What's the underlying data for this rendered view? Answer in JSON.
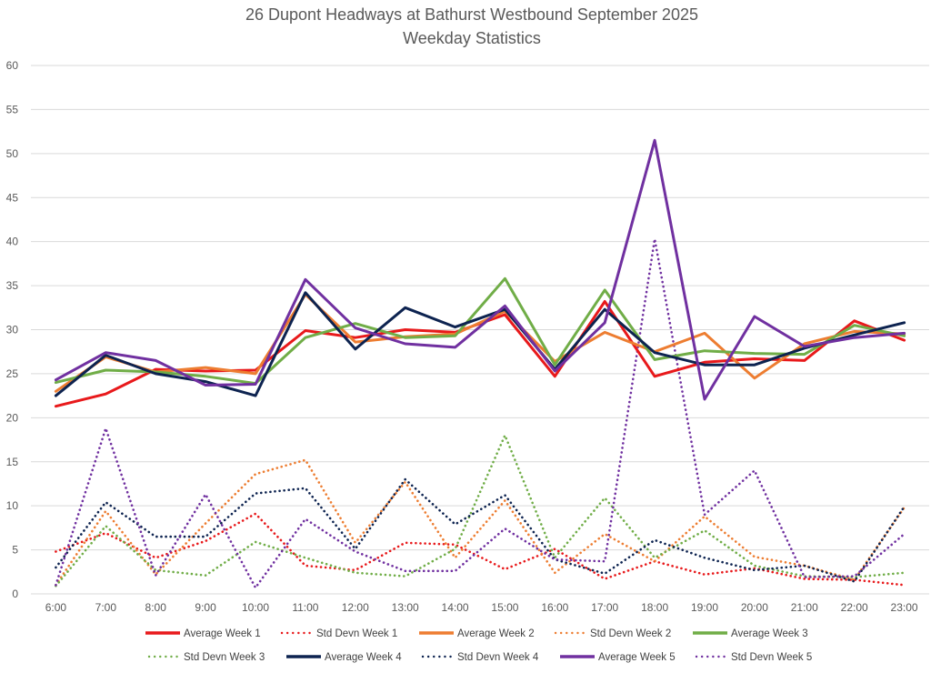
{
  "chart_data": {
    "type": "line",
    "title": "26 Dupont Headways at Bathurst Westbound September 2025",
    "subtitle": "Weekday Statistics",
    "xlabel": "",
    "ylabel": "",
    "ylim": [
      0,
      60
    ],
    "yticks": [
      0,
      5,
      10,
      15,
      20,
      25,
      30,
      35,
      40,
      45,
      50,
      55,
      60
    ],
    "grid": true,
    "legend_position": "bottom",
    "categories": [
      "6:00",
      "7:00",
      "8:00",
      "9:00",
      "10:00",
      "11:00",
      "12:00",
      "13:00",
      "14:00",
      "15:00",
      "16:00",
      "17:00",
      "18:00",
      "19:00",
      "20:00",
      "21:00",
      "22:00",
      "23:00"
    ],
    "series": [
      {
        "name": "Average Week 1",
        "style": "solid",
        "color": "#e8191b",
        "values": [
          21.3,
          22.7,
          25.5,
          25.3,
          25.4,
          29.9,
          29.1,
          30.0,
          29.7,
          31.7,
          24.7,
          33.2,
          24.7,
          26.3,
          26.7,
          26.5,
          31.0,
          28.8
        ]
      },
      {
        "name": "Std Devn Week 1",
        "style": "dotted",
        "color": "#e8191b",
        "values": [
          4.8,
          6.9,
          4.1,
          6.0,
          9.1,
          3.2,
          2.7,
          5.8,
          5.6,
          2.8,
          5.1,
          1.7,
          3.7,
          2.2,
          2.9,
          1.7,
          1.6,
          1.0
        ]
      },
      {
        "name": "Average Week 2",
        "style": "solid",
        "color": "#ed7d31",
        "values": [
          23.0,
          26.9,
          25.2,
          25.7,
          25.0,
          34.0,
          28.6,
          29.2,
          29.5,
          32.1,
          26.4,
          29.7,
          27.5,
          29.6,
          24.5,
          28.4,
          29.8,
          29.5
        ]
      },
      {
        "name": "Std Devn Week 2",
        "style": "dotted",
        "color": "#ed7d31",
        "values": [
          1.0,
          9.4,
          2.2,
          8.0,
          13.6,
          15.2,
          5.8,
          12.7,
          4.1,
          10.6,
          2.4,
          6.8,
          3.7,
          8.8,
          4.2,
          3.2,
          1.6,
          9.8
        ]
      },
      {
        "name": "Average Week 3",
        "style": "solid",
        "color": "#70ad47",
        "values": [
          24.0,
          25.4,
          25.2,
          24.7,
          23.9,
          29.1,
          30.7,
          29.1,
          29.3,
          35.8,
          26.0,
          34.5,
          26.6,
          27.6,
          27.3,
          27.2,
          30.5,
          29.3
        ]
      },
      {
        "name": "Std Devn Week 3",
        "style": "dotted",
        "color": "#70ad47",
        "values": [
          0.9,
          7.7,
          2.7,
          2.1,
          5.9,
          4.1,
          2.4,
          2.0,
          5.1,
          18.0,
          4.1,
          10.9,
          4.1,
          7.2,
          3.2,
          2.0,
          1.9,
          2.4
        ]
      },
      {
        "name": "Average Week 4",
        "style": "solid",
        "color": "#0d2350",
        "values": [
          22.5,
          27.1,
          25.0,
          24.1,
          22.5,
          34.2,
          27.8,
          32.5,
          30.3,
          32.3,
          25.5,
          32.3,
          27.4,
          26.0,
          26.0,
          27.9,
          29.4,
          30.8
        ]
      },
      {
        "name": "Std Devn Week 4",
        "style": "dotted",
        "color": "#0d2350",
        "values": [
          3.0,
          10.4,
          6.5,
          6.5,
          11.4,
          12.0,
          5.1,
          13.0,
          7.9,
          11.2,
          3.9,
          2.3,
          6.1,
          4.1,
          2.7,
          3.2,
          1.4,
          9.9
        ]
      },
      {
        "name": "Average Week 5",
        "style": "solid",
        "color": "#7030a0",
        "values": [
          24.3,
          27.4,
          26.5,
          23.7,
          23.8,
          35.7,
          30.2,
          28.4,
          28.0,
          32.7,
          25.3,
          30.8,
          51.5,
          22.1,
          31.5,
          28.1,
          29.1,
          29.6
        ]
      },
      {
        "name": "Std Devn Week 5",
        "style": "dotted",
        "color": "#7030a0",
        "values": [
          1.0,
          18.8,
          2.1,
          11.3,
          0.7,
          8.5,
          4.8,
          2.6,
          2.6,
          7.4,
          3.9,
          3.7,
          40.3,
          9.0,
          14.0,
          1.9,
          2.0,
          6.8
        ]
      }
    ]
  }
}
